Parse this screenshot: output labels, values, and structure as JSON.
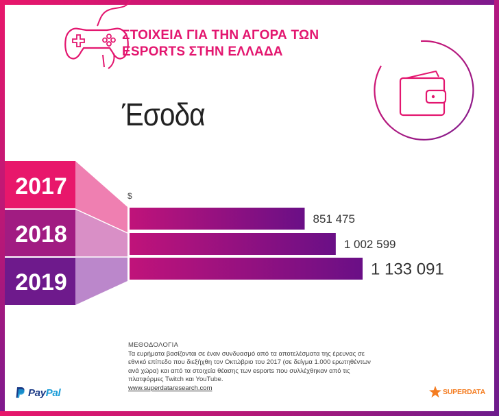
{
  "header": {
    "title_line1": "ΣΤΟΙΧΕΙΑ ΓΙΑ ΤΗΝ ΑΓΟΡΑ ΤΩΝ",
    "title_line2": "ESPORTS ΣΤΗΝ ΕΛΛΑΔΑ",
    "icon": "gamepad-icon"
  },
  "section": {
    "title": "Έσοδα",
    "icon": "wallet-icon"
  },
  "chart_data": {
    "type": "bar",
    "orientation": "horizontal",
    "unit": "$",
    "categories": [
      "2017",
      "2018",
      "2019"
    ],
    "values": [
      851475,
      1002599,
      1133091
    ],
    "value_labels": [
      "851 475",
      "1 002 599",
      "1 133 091"
    ],
    "xlim": [
      0,
      1200000
    ]
  },
  "methodology": {
    "title": "ΜΕΘΟΔΟΛΟΓΙΑ",
    "line1": "Τα ευρήματα βασίζονται σε έναν συνδυασμό από τα αποτελέσματα της έρευνας σε",
    "line2": "εθνικό επίπεδο που διεξήχθη τον Οκτώβριο του 2017 (σε δείγμα 1.000 ερωτηθέντων",
    "line3": "ανά χώρα) και από τα στοιχεία θέασης των esports που συλλέχθηκαν από τις",
    "line4": "πλατφόρμες Twitch και YouTube.",
    "link": "www.superdataresearch.com"
  },
  "logos": {
    "paypal_part1": "Pay",
    "paypal_part2": "Pal",
    "superdata": "SUPERDATA"
  },
  "colors": {
    "brand_pink": "#e3166f",
    "brand_purple": "#7d1a8e",
    "bar_start": "#c0137a",
    "bar_end": "#6a0f86",
    "paypal_dark": "#1b3a86",
    "paypal_light": "#179bd7",
    "superdata_orange": "#f47c20"
  }
}
